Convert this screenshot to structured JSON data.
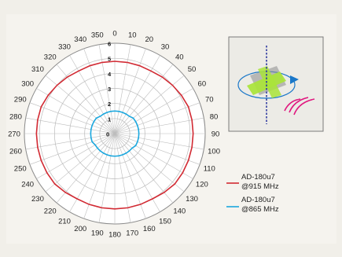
{
  "chart_data": {
    "type": "polar-line",
    "title": "",
    "angle_unit": "degrees",
    "angle_ticks": [
      0,
      10,
      20,
      30,
      40,
      50,
      60,
      70,
      80,
      90,
      100,
      110,
      120,
      130,
      140,
      150,
      160,
      170,
      180,
      190,
      200,
      210,
      220,
      230,
      240,
      250,
      260,
      270,
      280,
      290,
      300,
      310,
      320,
      330,
      340,
      350
    ],
    "radial_ticks": [
      0,
      1,
      2,
      3,
      4,
      5,
      6
    ],
    "radial_range": [
      0,
      6
    ],
    "grid": true,
    "legend_position": "bottom-right",
    "series": [
      {
        "name": "AD-180u7 @915 MHz",
        "color": "#d22a33",
        "angles": [
          0,
          10,
          20,
          30,
          40,
          50,
          60,
          70,
          80,
          90,
          100,
          110,
          120,
          130,
          140,
          150,
          160,
          170,
          180,
          190,
          200,
          210,
          220,
          230,
          240,
          250,
          260,
          270,
          280,
          290,
          300,
          310,
          320,
          330,
          340,
          350
        ],
        "values": [
          4.8,
          4.8,
          4.8,
          4.8,
          4.9,
          5.0,
          5.1,
          5.2,
          5.2,
          5.2,
          5.2,
          5.2,
          5.2,
          5.2,
          5.1,
          5.0,
          5.0,
          5.0,
          5.0,
          5.0,
          5.0,
          5.0,
          5.1,
          5.2,
          5.2,
          5.2,
          5.2,
          5.2,
          5.2,
          5.2,
          5.1,
          5.0,
          4.9,
          4.8,
          4.8,
          4.8
        ]
      },
      {
        "name": "AD-180u7 @865 MHz",
        "color": "#1aa7de",
        "angles": [
          0,
          10,
          20,
          30,
          40,
          50,
          60,
          70,
          80,
          90,
          100,
          110,
          120,
          130,
          140,
          150,
          160,
          170,
          180,
          190,
          200,
          210,
          220,
          230,
          240,
          250,
          260,
          270,
          280,
          290,
          300,
          310,
          320,
          330,
          340,
          350
        ],
        "values": [
          1.5,
          1.5,
          1.5,
          1.5,
          1.5,
          1.6,
          1.6,
          1.6,
          1.6,
          1.6,
          1.6,
          1.6,
          1.6,
          1.5,
          1.5,
          1.5,
          1.5,
          1.5,
          1.5,
          1.5,
          1.5,
          1.5,
          1.5,
          1.5,
          1.5,
          1.6,
          1.6,
          1.6,
          1.6,
          1.6,
          1.6,
          1.6,
          1.5,
          1.5,
          1.5,
          1.5
        ]
      }
    ]
  },
  "legend": [
    {
      "line1": "AD-180u7",
      "line2": "@915 MHz",
      "color": "#d22a33"
    },
    {
      "line1": "AD-180u7",
      "line2": "@865 MHz",
      "color": "#1aa7de"
    }
  ],
  "diagram": {
    "axis_color": "#2f3aa0",
    "tag_color": "#a9e43a",
    "arrow_color": "#1b78c9",
    "wave_color": "#e0187f"
  }
}
